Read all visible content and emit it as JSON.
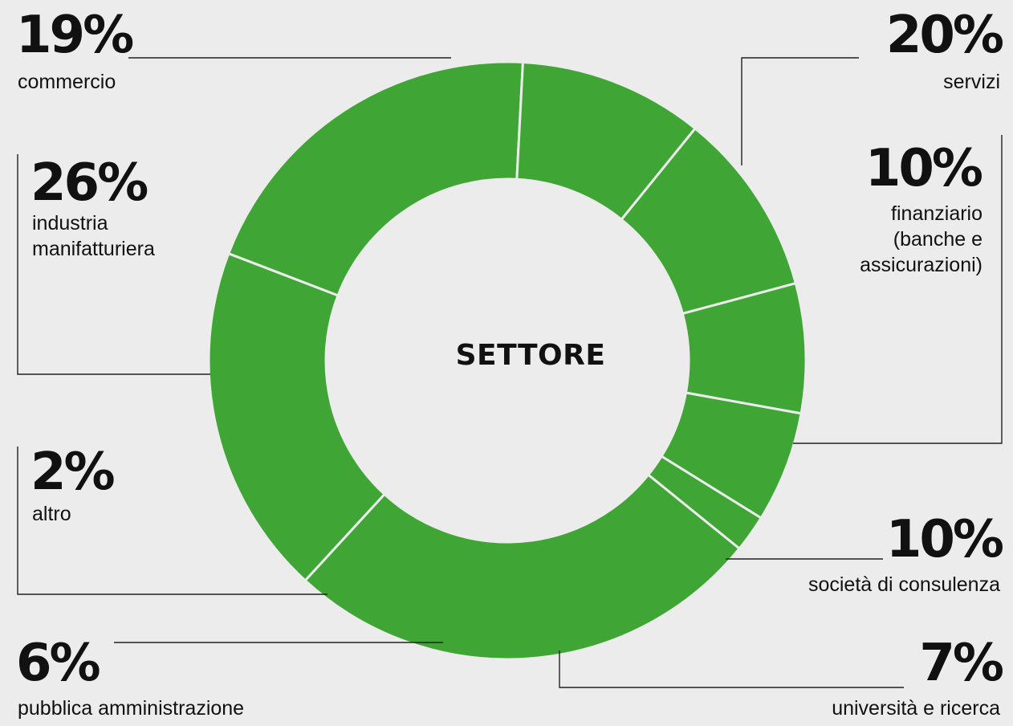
{
  "chart_data": {
    "type": "pie",
    "donut": true,
    "title": "SETTORE",
    "colors": {
      "slice": "#3fa636",
      "separator": "#ececec",
      "leader": "#222222",
      "background": "#ececec"
    },
    "slices": [
      {
        "key": "servizi",
        "value": 20,
        "pct_label": "20%",
        "label": "servizi"
      },
      {
        "key": "finanziario",
        "value": 10,
        "pct_label": "10%",
        "label": "finanziario\n(banche e\nassicurazioni)"
      },
      {
        "key": "consulenza",
        "value": 10,
        "pct_label": "10%",
        "label": "società di consulenza"
      },
      {
        "key": "universita",
        "value": 7,
        "pct_label": "7%",
        "label": "università e ricerca"
      },
      {
        "key": "pa",
        "value": 6,
        "pct_label": "6%",
        "label": "pubblica amministrazione"
      },
      {
        "key": "altro",
        "value": 2,
        "pct_label": "2%",
        "label": "altro"
      },
      {
        "key": "industria",
        "value": 26,
        "pct_label": "26%",
        "label": "industria\nmanifatturiera"
      },
      {
        "key": "commercio",
        "value": 19,
        "pct_label": "19%",
        "label": "commercio"
      }
    ]
  }
}
